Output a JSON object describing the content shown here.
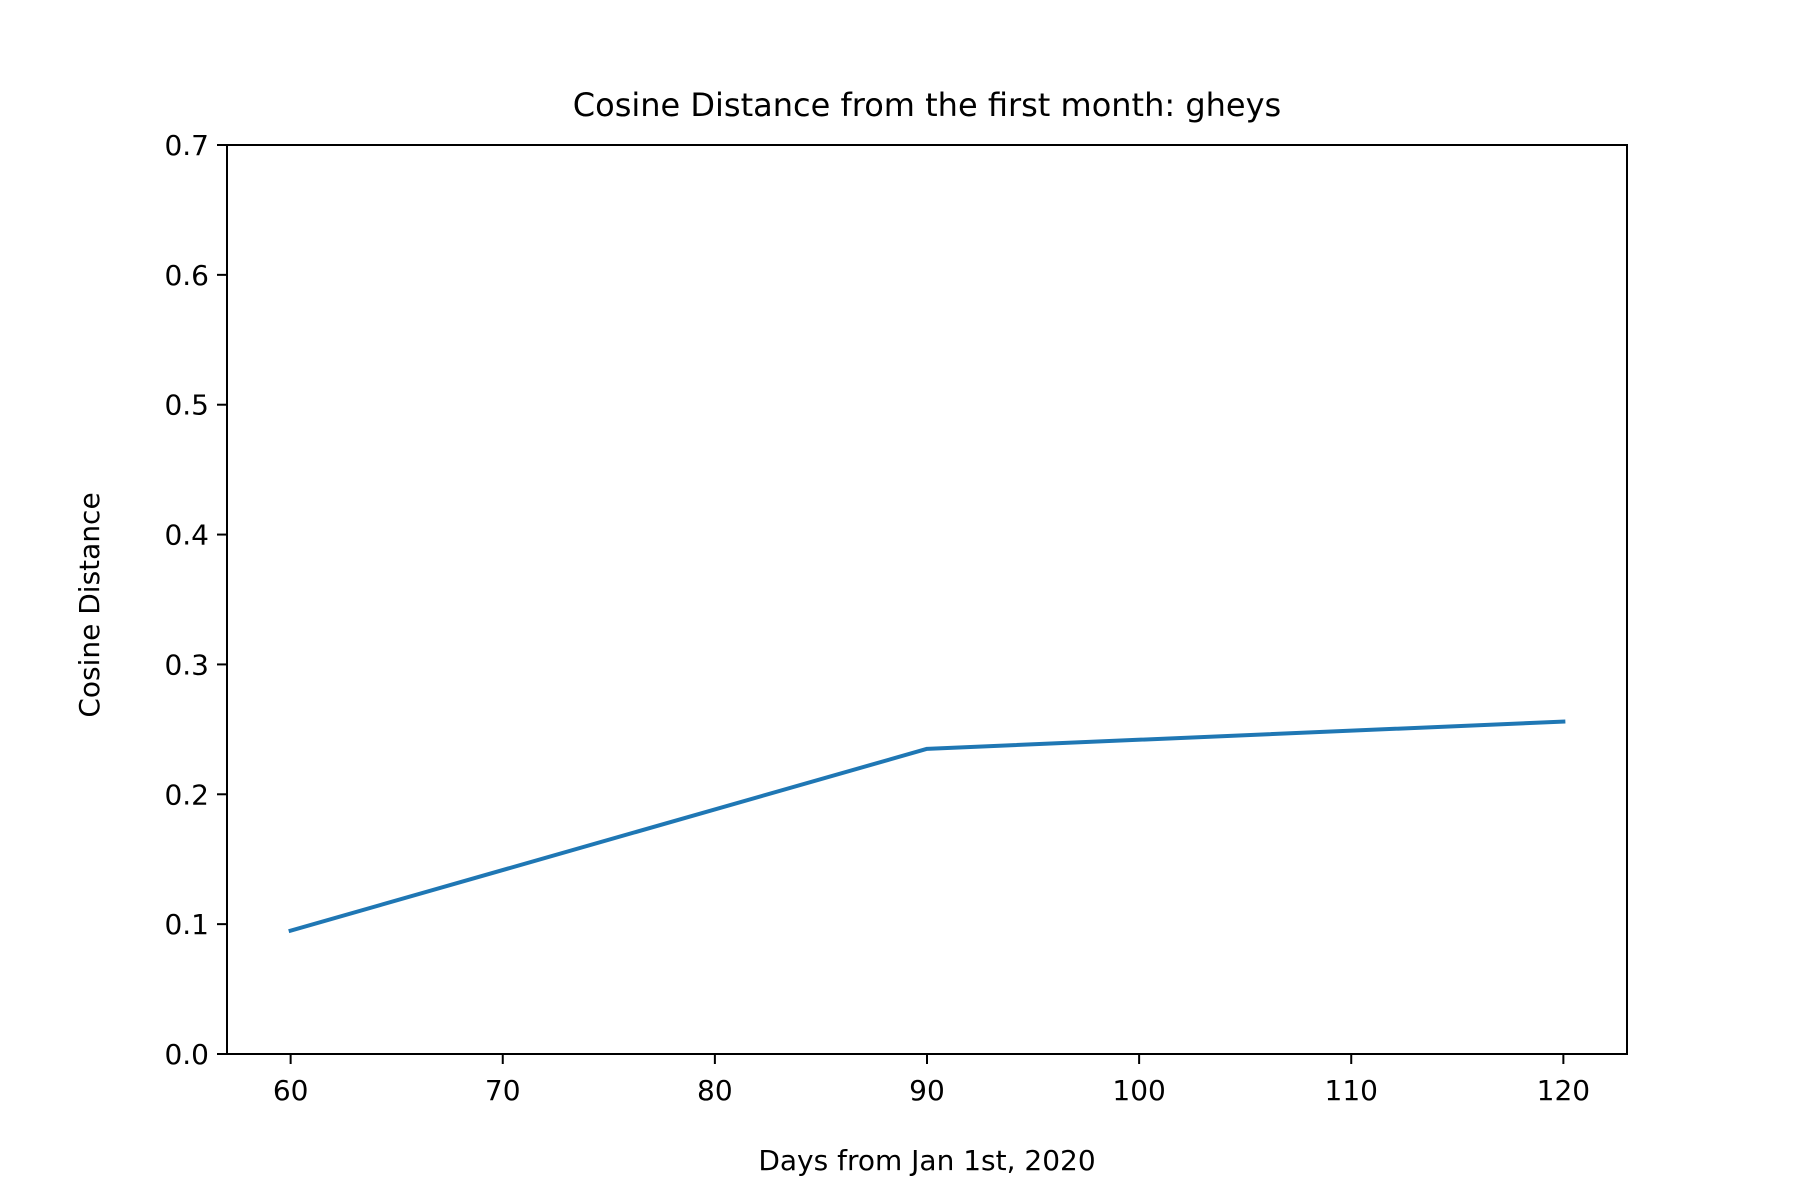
{
  "colors": {
    "series_line": "#1f77b4",
    "axes": "#000000",
    "background": "#ffffff"
  },
  "chart_data": {
    "type": "line",
    "title": "Cosine Distance from the first month: gheys",
    "xlabel": "Days from Jan 1st, 2020",
    "ylabel": "Cosine Distance",
    "xlim": [
      57,
      123
    ],
    "ylim": [
      0.0,
      0.7
    ],
    "x_ticks": [
      60,
      70,
      80,
      90,
      100,
      110,
      120
    ],
    "x_tick_labels": [
      "60",
      "70",
      "80",
      "90",
      "100",
      "110",
      "120"
    ],
    "y_ticks": [
      0.0,
      0.1,
      0.2,
      0.3,
      0.4,
      0.5,
      0.6,
      0.7
    ],
    "y_tick_labels": [
      "0.0",
      "0.1",
      "0.2",
      "0.3",
      "0.4",
      "0.5",
      "0.6",
      "0.7"
    ],
    "grid": false,
    "series": [
      {
        "x": [
          60,
          90,
          120
        ],
        "y": [
          0.095,
          0.235,
          0.256
        ]
      }
    ]
  }
}
